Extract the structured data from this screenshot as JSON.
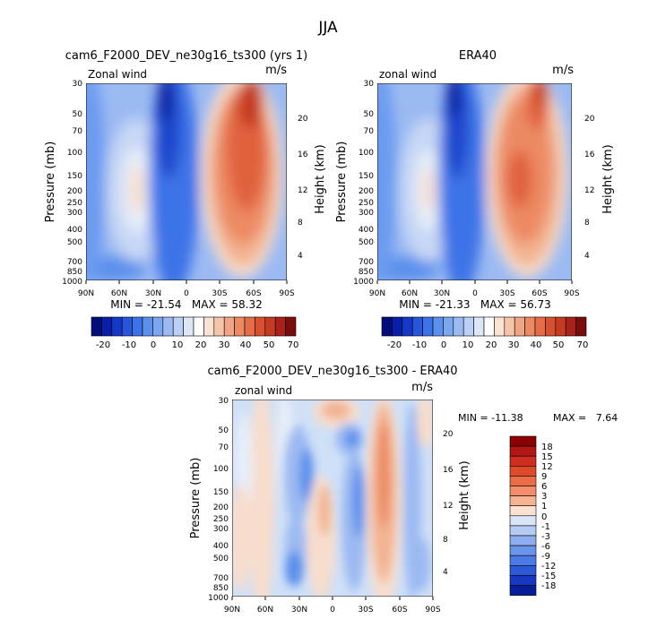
{
  "page_title": "JJA",
  "chart_data": [
    {
      "type": "heatmap",
      "id": "model",
      "title": "cam6_F2000_DEV_ne30g16_ts300 (yrs 1)",
      "left_label": "Zonal wind",
      "units": "m/s",
      "ylabel": "Pressure (mb)",
      "ylabel_right": "Height (km)",
      "x_ticks": [
        "90N",
        "60N",
        "30N",
        "0",
        "30S",
        "60S",
        "90S"
      ],
      "y_ticks": [
        "30",
        "50",
        "70",
        "100",
        "150",
        "200",
        "250",
        "300",
        "400",
        "500",
        "700",
        "850",
        "1000"
      ],
      "y_ticks_right": [
        "20",
        "16",
        "12",
        "8",
        "4"
      ],
      "stats": "MIN = -21.54   MAX = 58.32",
      "colorbar_labels": [
        "-20",
        "-10",
        "0",
        "10",
        "20",
        "30",
        "40",
        "50",
        "70"
      ]
    },
    {
      "type": "heatmap",
      "id": "era40",
      "title": "ERA40",
      "left_label": "zonal wind",
      "units": "m/s",
      "ylabel": "Pressure (mb)",
      "ylabel_right": "Height (km)",
      "x_ticks": [
        "90N",
        "60N",
        "30N",
        "0",
        "30S",
        "60S",
        "90S"
      ],
      "y_ticks": [
        "30",
        "50",
        "70",
        "100",
        "150",
        "200",
        "250",
        "300",
        "400",
        "500",
        "700",
        "850",
        "1000"
      ],
      "y_ticks_right": [
        "20",
        "16",
        "12",
        "8",
        "4"
      ],
      "stats": "MIN = -21.33   MAX = 56.73",
      "colorbar_labels": [
        "-20",
        "-10",
        "0",
        "10",
        "20",
        "30",
        "40",
        "50",
        "70"
      ]
    },
    {
      "type": "heatmap",
      "id": "difference",
      "title": "cam6_F2000_DEV_ne30g16_ts300 - ERA40",
      "left_label": "zonal wind",
      "units": "m/s",
      "ylabel": "Pressure (mb)",
      "ylabel_right": "Height (km)",
      "x_ticks": [
        "90N",
        "60N",
        "30N",
        "0",
        "30S",
        "60S",
        "90S"
      ],
      "y_ticks": [
        "30",
        "50",
        "70",
        "100",
        "150",
        "200",
        "250",
        "300",
        "400",
        "500",
        "700",
        "850",
        "1000"
      ],
      "y_ticks_right": [
        "20",
        "16",
        "12",
        "8",
        "4"
      ],
      "stats_min": "MIN = -11.38",
      "stats_max": "MAX =   7.64",
      "colorbar_labels": [
        "18",
        "15",
        "12",
        "9",
        "6",
        "3",
        "1",
        "0",
        "-1",
        "-3",
        "-6",
        "-9",
        "-12",
        "-15",
        "-18"
      ]
    }
  ]
}
